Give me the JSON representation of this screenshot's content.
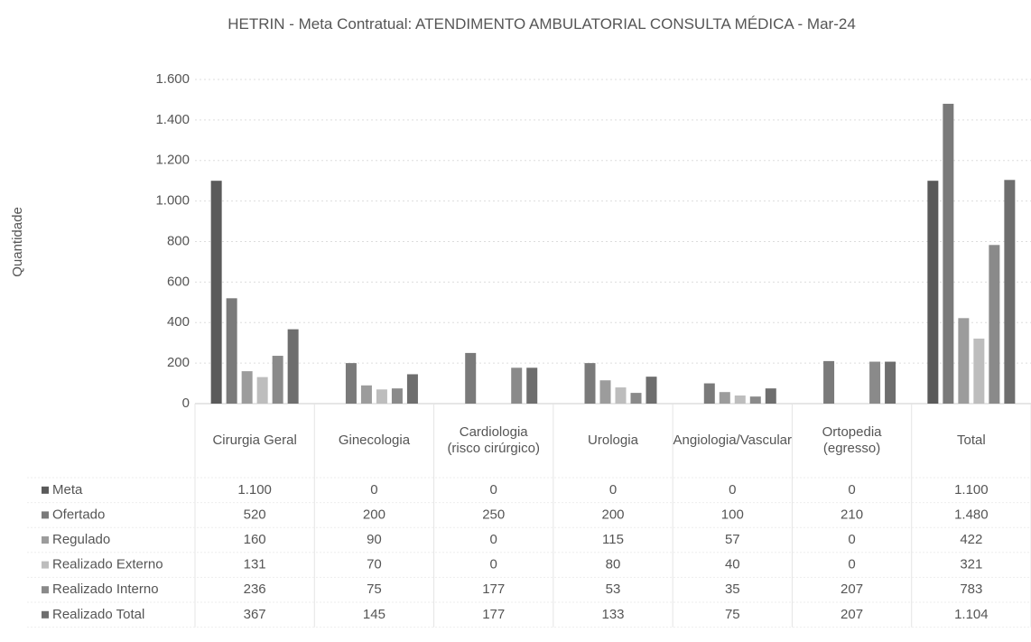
{
  "chart_data": {
    "type": "bar",
    "title": "HETRIN - Meta Contratual: ATENDIMENTO AMBULATORIAL CONSULTA MÉDICA - Mar-24",
    "y_label": "Quantidade",
    "categories": [
      "Cirurgia Geral",
      "Ginecologia",
      "Cardiologia (risco cirúrgico)",
      "Urologia",
      "Angiologia/Vascular",
      "Ortopedia (egresso)",
      "Total"
    ],
    "series": [
      {
        "name": "Meta",
        "color": "#5a5a5a",
        "values": [
          1100,
          0,
          0,
          0,
          0,
          0,
          1100
        ],
        "value_labels": [
          "1.100",
          "0",
          "0",
          "0",
          "0",
          "0",
          "1.100"
        ]
      },
      {
        "name": "Ofertado",
        "color": "#7a7a7a",
        "values": [
          520,
          200,
          250,
          200,
          100,
          210,
          1480
        ],
        "value_labels": [
          "520",
          "200",
          "250",
          "200",
          "100",
          "210",
          "1.480"
        ]
      },
      {
        "name": "Regulado",
        "color": "#9c9c9c",
        "values": [
          160,
          90,
          0,
          115,
          57,
          0,
          422
        ],
        "value_labels": [
          "160",
          "90",
          "0",
          "115",
          "57",
          "0",
          "422"
        ]
      },
      {
        "name": "Realizado Externo",
        "color": "#bdbdbd",
        "values": [
          131,
          70,
          0,
          80,
          40,
          0,
          321
        ],
        "value_labels": [
          "131",
          "70",
          "0",
          "80",
          "40",
          "0",
          "321"
        ]
      },
      {
        "name": "Realizado Interno",
        "color": "#8a8a8a",
        "values": [
          236,
          75,
          177,
          53,
          35,
          207,
          783
        ],
        "value_labels": [
          "236",
          "75",
          "177",
          "53",
          "35",
          "207",
          "783"
        ]
      },
      {
        "name": "Realizado Total",
        "color": "#6e6e6e",
        "values": [
          367,
          145,
          177,
          133,
          75,
          207,
          1104
        ],
        "value_labels": [
          "367",
          "145",
          "177",
          "133",
          "75",
          "207",
          "1.104"
        ]
      }
    ],
    "ylim": [
      0,
      1600
    ],
    "yticks": [
      0,
      200,
      400,
      600,
      800,
      {
        "value": 1000,
        "label": "1.000"
      },
      {
        "value": 1200,
        "label": "1.200"
      },
      {
        "value": 1400,
        "label": "1.400"
      },
      {
        "value": 1600,
        "label": "1.600"
      }
    ],
    "grid": true
  }
}
